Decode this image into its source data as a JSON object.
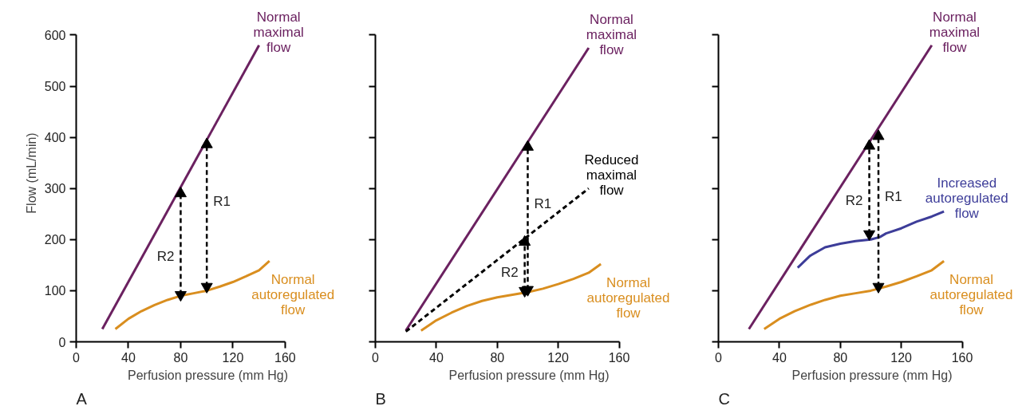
{
  "chart_data": [
    {
      "type": "line",
      "xlabel": "Perfusion pressure (mm Hg)",
      "ylabel": "Flow (mL/min)",
      "xlim": [
        0,
        160
      ],
      "ylim": [
        0,
        600
      ],
      "xticks": [
        0,
        40,
        80,
        120,
        160
      ],
      "yticks": [
        0,
        100,
        200,
        300,
        400,
        500,
        600
      ],
      "annotations": [
        "A"
      ],
      "series": [
        {
          "name": "Normal maximal flow",
          "color": "#6b2160",
          "x": [
            20,
            140
          ],
          "values": [
            25,
            580
          ]
        },
        {
          "name": "Normal autoregulated flow",
          "color": "#d98e1f",
          "x": [
            30,
            40,
            50,
            60,
            70,
            80,
            90,
            100,
            110,
            120,
            130,
            140,
            148
          ],
          "values": [
            25,
            45,
            60,
            72,
            82,
            90,
            95,
            100,
            108,
            117,
            128,
            140,
            158
          ]
        },
        {
          "name": "R2",
          "color": "#000000",
          "x": [
            80,
            80
          ],
          "values": [
            92,
            290
          ],
          "line_style": "dashed",
          "marker": "triangle"
        },
        {
          "name": "R1",
          "color": "#000000",
          "x": [
            100,
            100
          ],
          "values": [
            108,
            386
          ],
          "line_style": "dashed",
          "marker": "triangle"
        }
      ]
    },
    {
      "type": "line",
      "xlabel": "Perfusion pressure (mm Hg)",
      "xlim": [
        0,
        160
      ],
      "ylim": [
        0,
        600
      ],
      "xticks": [
        0,
        40,
        80,
        120,
        160
      ],
      "yticks": [
        {
          "value": 0,
          "label": null
        },
        {
          "value": 100,
          "label": null
        },
        {
          "value": 200,
          "label": null
        },
        {
          "value": 300,
          "label": null
        },
        {
          "value": 400,
          "label": null
        },
        {
          "value": 500,
          "label": null
        },
        {
          "value": 600,
          "label": null
        }
      ],
      "tick_labels": "x",
      "annotations": [
        "B"
      ],
      "series": [
        {
          "name": "Normal maximal flow",
          "color": "#6b2160",
          "x": [
            20,
            140
          ],
          "values": [
            22,
            575
          ]
        },
        {
          "name": "Reduced maximal flow",
          "color": "#000000",
          "x": [
            20,
            140
          ],
          "values": [
            20,
            300
          ],
          "line_style": "dashed"
        },
        {
          "name": "Normal autoregulated flow",
          "color": "#d98e1f",
          "x": [
            30,
            40,
            50,
            60,
            70,
            80,
            90,
            100,
            110,
            120,
            130,
            140,
            148
          ],
          "values": [
            22,
            42,
            57,
            70,
            80,
            87,
            92,
            97,
            104,
            113,
            123,
            135,
            152
          ]
        },
        {
          "name": "R1",
          "color": "#000000",
          "x": [
            100,
            100
          ],
          "values": [
            102,
            381
          ],
          "line_style": "dashed",
          "marker": "triangle"
        },
        {
          "name": "R2",
          "color": "#000000",
          "x": [
            98,
            98
          ],
          "values": [
            100,
            195
          ],
          "line_style": "dashed",
          "marker": "triangle"
        }
      ]
    },
    {
      "type": "line",
      "xlabel": "Perfusion pressure (mm Hg)",
      "xlim": [
        0,
        160
      ],
      "ylim": [
        0,
        600
      ],
      "xticks": [
        0,
        40,
        80,
        120,
        160
      ],
      "yticks": [
        {
          "value": 0,
          "label": null
        },
        {
          "value": 100,
          "label": null
        },
        {
          "value": 200,
          "label": null
        },
        {
          "value": 300,
          "label": null
        },
        {
          "value": 400,
          "label": null
        },
        {
          "value": 500,
          "label": null
        },
        {
          "value": 600,
          "label": null
        }
      ],
      "tick_labels": "x",
      "annotations": [
        "C"
      ],
      "series": [
        {
          "name": "Normal maximal flow",
          "color": "#6b2160",
          "x": [
            20,
            140
          ],
          "values": [
            25,
            580
          ]
        },
        {
          "name": "Increased autoregulated flow",
          "color": "#3d3d99",
          "x": [
            52,
            60,
            70,
            80,
            90,
            100,
            106,
            110,
            120,
            130,
            140,
            148
          ],
          "values": [
            145,
            168,
            185,
            192,
            197,
            200,
            205,
            212,
            222,
            235,
            245,
            255
          ]
        },
        {
          "name": "Normal autoregulated flow",
          "color": "#d98e1f",
          "x": [
            30,
            40,
            50,
            60,
            70,
            80,
            90,
            100,
            110,
            120,
            130,
            140,
            148
          ],
          "values": [
            25,
            45,
            60,
            72,
            82,
            90,
            95,
            100,
            108,
            117,
            128,
            140,
            158
          ]
        },
        {
          "name": "R2",
          "color": "#000000",
          "x": [
            99,
            99
          ],
          "values": [
            211,
            383
          ],
          "line_style": "dashed",
          "marker": "triangle"
        },
        {
          "name": "R1",
          "color": "#000000",
          "x": [
            105,
            105
          ],
          "values": [
            108,
            402
          ],
          "line_style": "dashed",
          "marker": "triangle"
        }
      ]
    }
  ]
}
